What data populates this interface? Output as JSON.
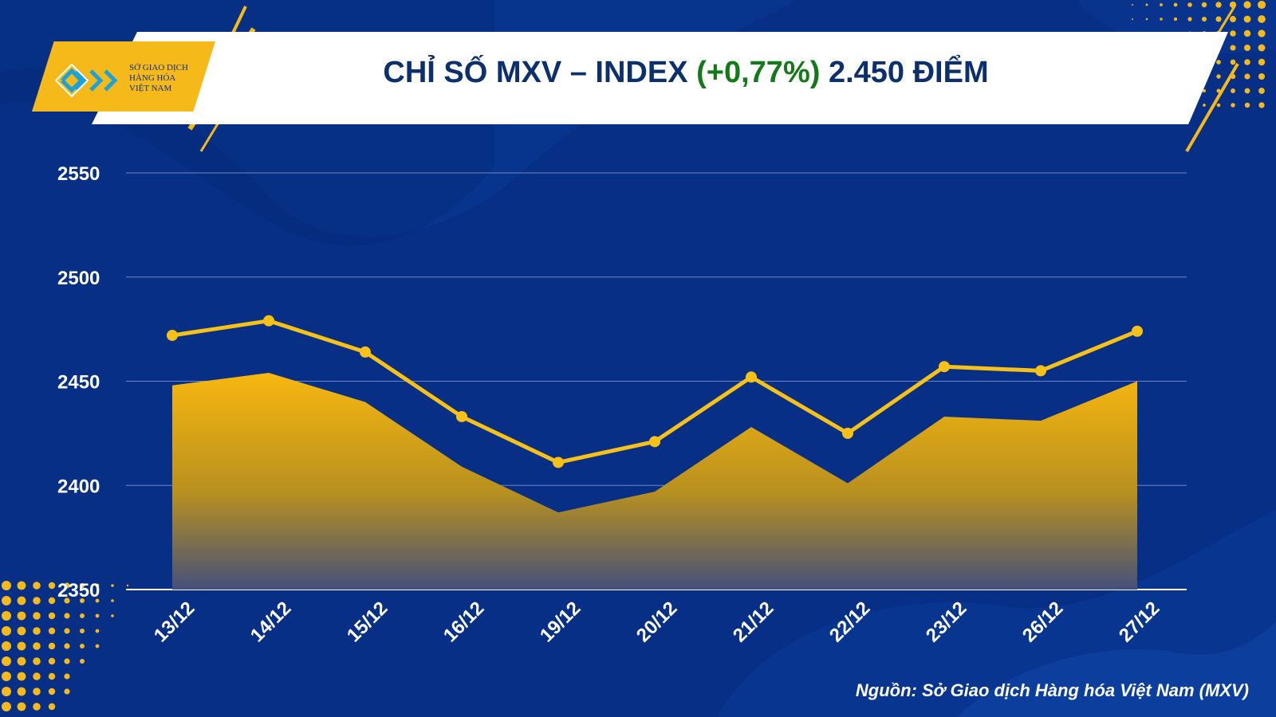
{
  "header": {
    "logo_lines": [
      "SỞ GIAO DỊCH",
      "HÀNG HÓA",
      "VIỆT NAM"
    ],
    "title_prefix": "CHỈ SỐ MXV – INDEX",
    "title_change": "(+0,77%)",
    "title_suffix": "2.450 ĐIỂM"
  },
  "colors": {
    "background": "#062f85",
    "accent": "#f6b91a",
    "line": "#f8c118",
    "positive": "#147a19",
    "title": "#0c2f6e"
  },
  "chart_data": {
    "type": "area",
    "categories": [
      "13/12",
      "14/12",
      "15/12",
      "16/12",
      "19/12",
      "20/12",
      "21/12",
      "22/12",
      "23/12",
      "26/12",
      "27/12"
    ],
    "series": [
      {
        "style": "line-markers",
        "values": [
          2472,
          2479,
          2464,
          2433,
          2411,
          2421,
          2452,
          2425,
          2457,
          2455,
          2474
        ]
      },
      {
        "style": "area-gradient",
        "values": [
          2448,
          2454,
          2440,
          2409,
          2387,
          2397,
          2428,
          2401,
          2433,
          2431,
          2450
        ]
      }
    ],
    "ylim": [
      2350,
      2550
    ],
    "yticks": [
      2550,
      2500,
      2450,
      2400,
      2350
    ],
    "grid": true
  },
  "footer": {
    "source": "Nguồn: Sở Giao dịch Hàng hóa Việt Nam (MXV)"
  }
}
